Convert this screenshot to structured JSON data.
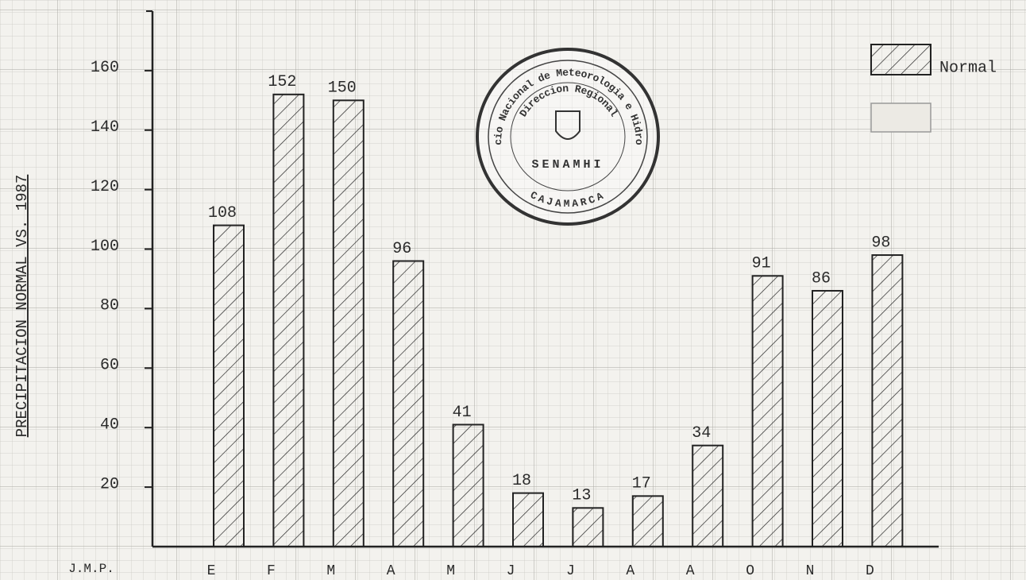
{
  "chart_data": {
    "type": "bar",
    "y_label": "PRECIPITACION NORMAL VS. 1987",
    "corner_label": "J.M.P.",
    "categories": [
      "E",
      "F",
      "M",
      "A",
      "M",
      "J",
      "J",
      "A",
      "A",
      "O",
      "N",
      "D"
    ],
    "series": [
      {
        "name": "Normal",
        "color": "#222222",
        "values": [
          108,
          152,
          150,
          96,
          41,
          18,
          13,
          17,
          34,
          91,
          86,
          98
        ]
      }
    ],
    "ylim": [
      0,
      180
    ],
    "yticks": [
      20,
      40,
      60,
      80,
      100,
      120,
      140,
      160
    ],
    "legend": "top-right",
    "stamp": {
      "outer": "Servicio Nacional de Meteorologia e Hidrologia",
      "inner": "Direccion Regional",
      "center": "SENAMHI",
      "bottom": "CAJAMARCA"
    }
  }
}
